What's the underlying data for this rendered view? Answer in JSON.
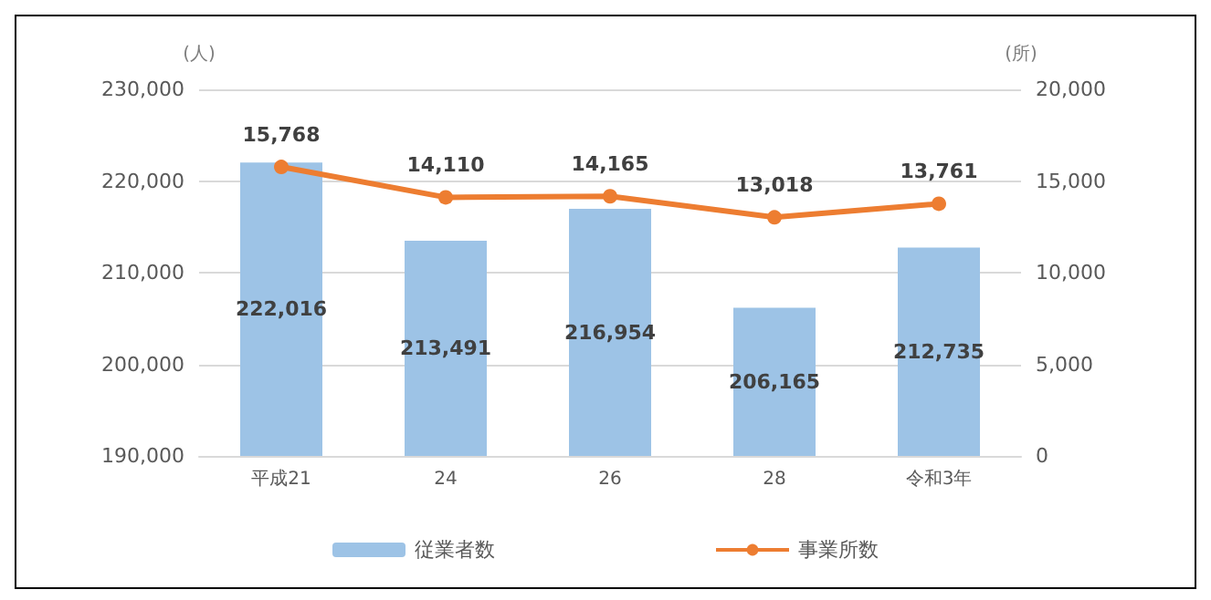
{
  "chart_data": {
    "type": "bar",
    "categories": [
      "平成21",
      "24",
      "26",
      "28",
      "令和3年"
    ],
    "ylabel": "(人)",
    "y2label": "(所)",
    "series": [
      {
        "name": "従業者数",
        "color": "#9dc3e6",
        "values": [
          222016,
          213491,
          216954,
          206165,
          212735
        ],
        "value_labels": [
          "222,016",
          "213,491",
          "216,954",
          "206,165",
          "212,735"
        ]
      },
      {
        "name": "事業所数",
        "type": "line",
        "axis": "y2",
        "color": "#ed7d31",
        "marker": "circle",
        "values": [
          15768,
          14110,
          14165,
          13018,
          13761
        ],
        "value_labels": [
          "15,768",
          "14,110",
          "14,165",
          "13,018",
          "13,761"
        ]
      }
    ],
    "ylim": [
      190000,
      230000
    ],
    "yticks": [
      {
        "value": 190000,
        "label": "190,000"
      },
      {
        "value": 200000,
        "label": "200,000"
      },
      {
        "value": 210000,
        "label": "210,000"
      },
      {
        "value": 220000,
        "label": "220,000"
      },
      {
        "value": 230000,
        "label": "230,000"
      }
    ],
    "y2lim": [
      0,
      20000
    ],
    "y2ticks": [
      0,
      {
        "value": 5000,
        "label": "5,000"
      },
      {
        "value": 10000,
        "label": "10,000"
      },
      {
        "value": 15000,
        "label": "15,000"
      },
      {
        "value": 20000,
        "label": "20,000"
      }
    ],
    "grid": "y",
    "legend": "bottom"
  }
}
